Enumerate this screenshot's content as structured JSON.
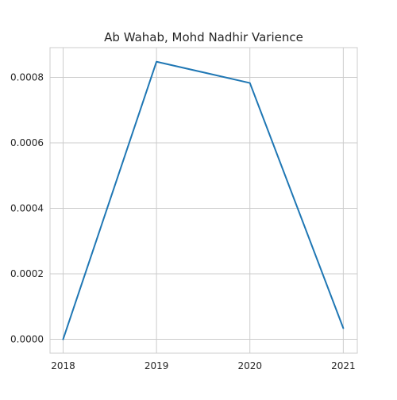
{
  "chart_data": {
    "type": "line",
    "title": "Ab Wahab, Mohd Nadhir Varience",
    "xlabel": "",
    "ylabel": "",
    "x": [
      2018,
      2019,
      2020,
      2021
    ],
    "x_tick_labels": [
      "2018",
      "2019",
      "2020",
      "2021"
    ],
    "series": [
      {
        "values": [
          0.0,
          0.000848,
          0.000783,
          3.4e-05
        ],
        "color": "#1f77b4"
      }
    ],
    "xlim": [
      2017.86,
      2021.15
    ],
    "ylim": [
      -4.24e-05,
      0.000891
    ],
    "y_ticks": [
      0.0,
      0.0002,
      0.0004,
      0.0006,
      0.0008
    ],
    "y_tick_labels": [
      "0.0000",
      "0.0002",
      "0.0004",
      "0.0006",
      "0.0008"
    ],
    "grid": true,
    "legend": "none"
  }
}
